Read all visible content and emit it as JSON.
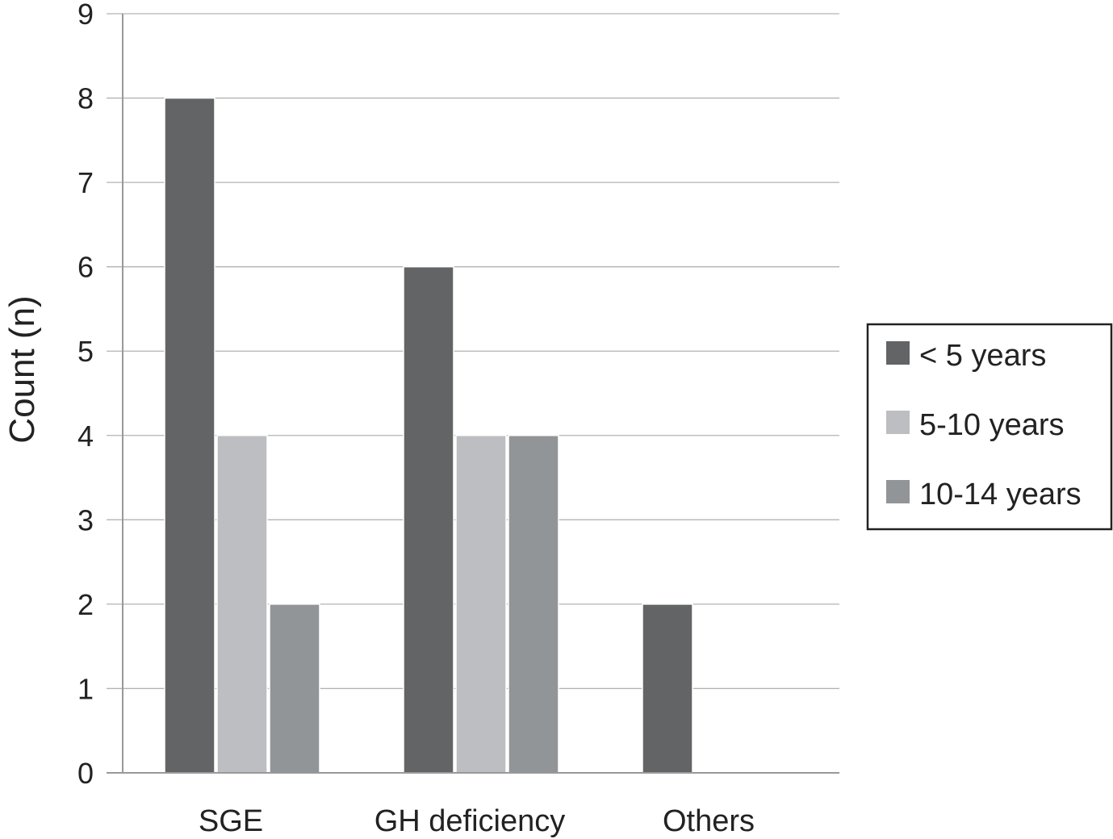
{
  "chart_data": {
    "type": "bar",
    "categories": [
      "SGE",
      "GH deficiency",
      "Others"
    ],
    "series": [
      {
        "name": "< 5 years",
        "values": [
          8,
          6,
          2
        ],
        "color": "#636466"
      },
      {
        "name": "5-10 years",
        "values": [
          4,
          4,
          0
        ],
        "color": "#bdbec1"
      },
      {
        "name": "10-14 years",
        "values": [
          2,
          4,
          0
        ],
        "color": "#929597"
      }
    ],
    "ylabel": "Count (n)",
    "xlabel": "",
    "ylim": [
      0,
      9
    ],
    "yticks": [
      "0",
      "1",
      "2",
      "3",
      "4",
      "5",
      "6",
      "7",
      "8",
      "9"
    ],
    "grid": true,
    "legend_position": "right"
  }
}
